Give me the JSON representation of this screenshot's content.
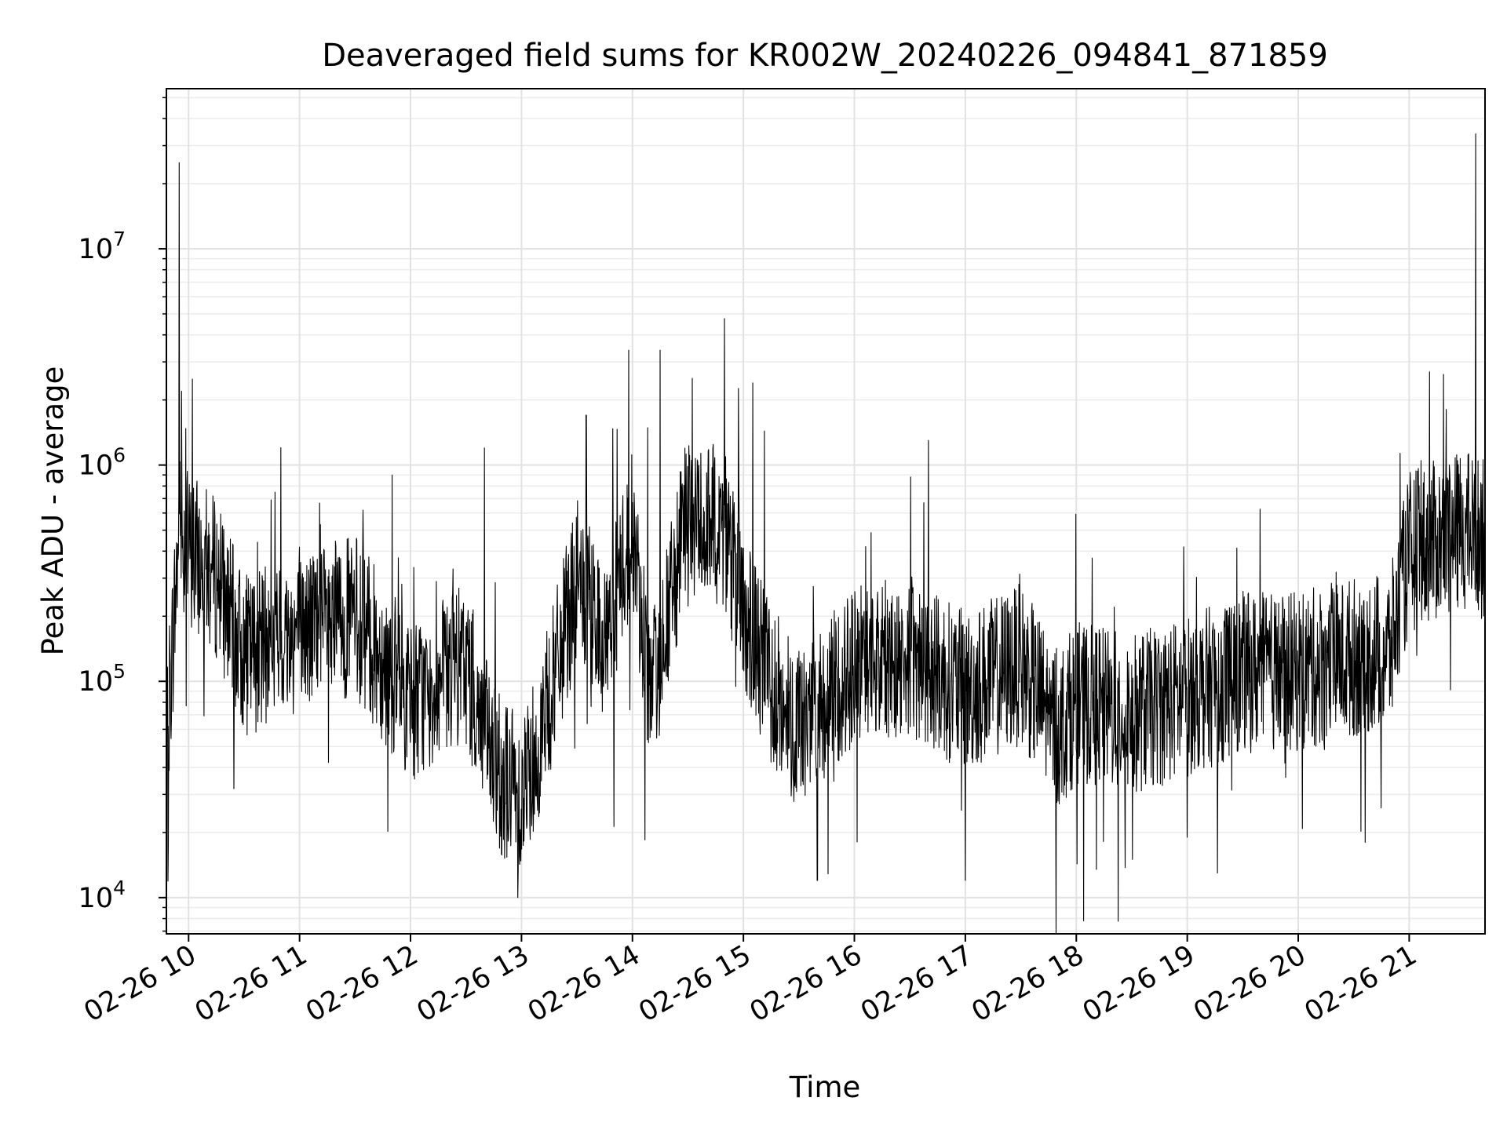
{
  "chart_data": {
    "type": "line",
    "title": "Deaveraged field sums for KR002W_20240226_094841_871859",
    "xlabel": "Time",
    "ylabel": "Peak ADU - average",
    "yscale": "log",
    "ylim": [
      6800,
      55000000
    ],
    "xlim": [
      "02-26 09:48",
      "02-26 21:41"
    ],
    "grid": true,
    "line_color": "#000000",
    "x_ticks": [
      "02-26 10",
      "02-26 11",
      "02-26 12",
      "02-26 13",
      "02-26 14",
      "02-26 15",
      "02-26 16",
      "02-26 17",
      "02-26 18",
      "02-26 19",
      "02-26 20",
      "02-26 21"
    ],
    "y_ticks": [
      {
        "base": "10",
        "exp": "4",
        "value": 10000
      },
      {
        "base": "10",
        "exp": "5",
        "value": 100000
      },
      {
        "base": "10",
        "exp": "6",
        "value": 1000000
      },
      {
        "base": "10",
        "exp": "7",
        "value": 10000000
      }
    ],
    "series": [
      {
        "points": [
          {
            "x": "02-26 09:48",
            "y": 50000
          },
          {
            "x": "02-26 09:55",
            "y": 500000
          },
          {
            "x": "02-26 10:00",
            "y": 400000
          },
          {
            "x": "02-26 10:15",
            "y": 300000
          },
          {
            "x": "02-26 10:30",
            "y": 130000
          },
          {
            "x": "02-26 11:00",
            "y": 170000
          },
          {
            "x": "02-26 11:30",
            "y": 200000
          },
          {
            "x": "02-26 12:00",
            "y": 80000
          },
          {
            "x": "02-26 12:30",
            "y": 120000
          },
          {
            "x": "02-26 12:45",
            "y": 40000
          },
          {
            "x": "02-26 13:00",
            "y": 30000
          },
          {
            "x": "02-26 13:15",
            "y": 80000
          },
          {
            "x": "02-26 13:30",
            "y": 300000
          },
          {
            "x": "02-26 13:45",
            "y": 150000
          },
          {
            "x": "02-26 14:00",
            "y": 500000
          },
          {
            "x": "02-26 14:10",
            "y": 80000
          },
          {
            "x": "02-26 14:30",
            "y": 600000
          },
          {
            "x": "02-26 14:50",
            "y": 500000
          },
          {
            "x": "02-26 15:00",
            "y": 200000
          },
          {
            "x": "02-26 15:15",
            "y": 100000
          },
          {
            "x": "02-26 15:30",
            "y": 60000
          },
          {
            "x": "02-26 16:00",
            "y": 120000
          },
          {
            "x": "02-26 16:30",
            "y": 130000
          },
          {
            "x": "02-26 17:00",
            "y": 90000
          },
          {
            "x": "02-26 17:30",
            "y": 120000
          },
          {
            "x": "02-26 17:50",
            "y": 60000
          },
          {
            "x": "02-26 18:00",
            "y": 80000
          },
          {
            "x": "02-26 18:30",
            "y": 70000
          },
          {
            "x": "02-26 19:00",
            "y": 85000
          },
          {
            "x": "02-26 19:30",
            "y": 110000
          },
          {
            "x": "02-26 20:00",
            "y": 110000
          },
          {
            "x": "02-26 20:30",
            "y": 130000
          },
          {
            "x": "02-26 20:50",
            "y": 140000
          },
          {
            "x": "02-26 21:00",
            "y": 400000
          },
          {
            "x": "02-26 21:30",
            "y": 500000
          },
          {
            "x": "02-26 21:41",
            "y": 450000
          }
        ],
        "spikes": [
          {
            "x": "02-26 09:55",
            "y": 25000000
          },
          {
            "x": "02-26 10:02",
            "y": 2500000
          },
          {
            "x": "02-26 11:50",
            "y": 900000
          },
          {
            "x": "02-26 12:40",
            "y": 1200000
          },
          {
            "x": "02-26 12:58",
            "y": 10000
          },
          {
            "x": "02-26 13:35",
            "y": 1700000
          },
          {
            "x": "02-26 13:58",
            "y": 3400000
          },
          {
            "x": "02-26 14:15",
            "y": 3400000
          },
          {
            "x": "02-26 15:05",
            "y": 2400000
          },
          {
            "x": "02-26 15:40",
            "y": 12000
          },
          {
            "x": "02-26 16:40",
            "y": 1300000
          },
          {
            "x": "02-26 17:00",
            "y": 12000
          },
          {
            "x": "02-26 19:00",
            "y": 19000
          },
          {
            "x": "02-26 21:11",
            "y": 2700000
          },
          {
            "x": "02-26 21:36",
            "y": 34000000
          }
        ]
      }
    ]
  }
}
